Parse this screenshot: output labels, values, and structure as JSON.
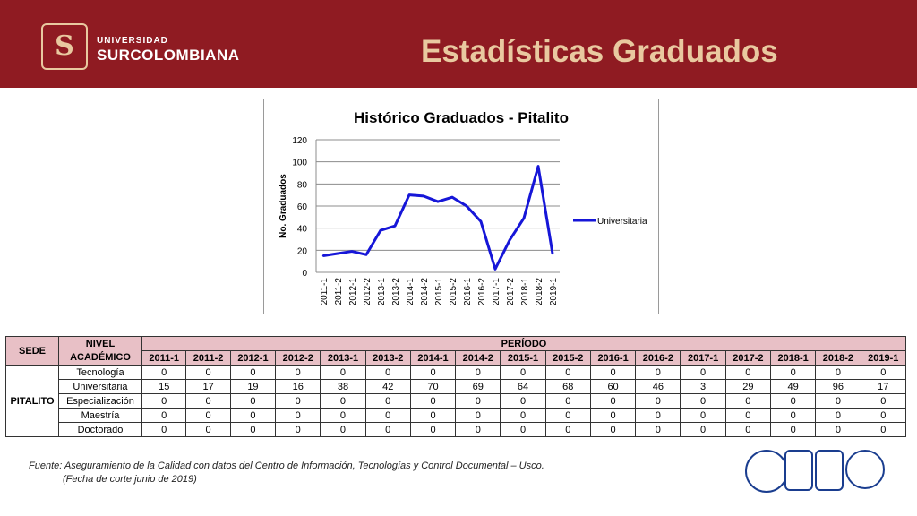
{
  "header": {
    "brand_small": "UNIVERSIDAD",
    "brand_big": "SURCOLOMBIANA",
    "title": "Estadísticas Graduados"
  },
  "chart_data": {
    "type": "line",
    "title": "Histórico Graduados - Pitalito",
    "xlabel": "",
    "ylabel": "No. Graduados",
    "categories": [
      "2011-1",
      "2011-2",
      "2012-1",
      "2012-2",
      "2013-1",
      "2013-2",
      "2014-1",
      "2014-2",
      "2015-1",
      "2015-2",
      "2016-1",
      "2016-2",
      "2017-1",
      "2017-2",
      "2018-1",
      "2018-2",
      "2019-1"
    ],
    "series": [
      {
        "name": "Universitaria",
        "values": [
          15,
          17,
          19,
          16,
          38,
          42,
          70,
          69,
          64,
          68,
          60,
          46,
          3,
          29,
          49,
          96,
          17
        ]
      }
    ],
    "ylim": [
      0,
      120
    ],
    "yticks": [
      0,
      20,
      40,
      60,
      80,
      100,
      120
    ],
    "grid": true,
    "legend": "right",
    "colors": {
      "line": "#1616d8"
    }
  },
  "table": {
    "header_sede": "SEDE",
    "header_nivel_1": "NIVEL",
    "header_nivel_2": "ACADÉMICO",
    "header_periodo": "PERÍODO",
    "periods": [
      "2011-1",
      "2011-2",
      "2012-1",
      "2012-2",
      "2013-1",
      "2013-2",
      "2014-1",
      "2014-2",
      "2015-1",
      "2015-2",
      "2016-1",
      "2016-2",
      "2017-1",
      "2017-2",
      "2018-1",
      "2018-2",
      "2019-1"
    ],
    "sede": "PITALITO",
    "rows": [
      {
        "nivel": "Tecnología",
        "values": [
          0,
          0,
          0,
          0,
          0,
          0,
          0,
          0,
          0,
          0,
          0,
          0,
          0,
          0,
          0,
          0,
          0
        ]
      },
      {
        "nivel": "Universitaria",
        "values": [
          15,
          17,
          19,
          16,
          38,
          42,
          70,
          69,
          64,
          68,
          60,
          46,
          3,
          29,
          49,
          96,
          17
        ]
      },
      {
        "nivel": "Especialización",
        "values": [
          0,
          0,
          0,
          0,
          0,
          0,
          0,
          0,
          0,
          0,
          0,
          0,
          0,
          0,
          0,
          0,
          0
        ]
      },
      {
        "nivel": "Maestría",
        "values": [
          0,
          0,
          0,
          0,
          0,
          0,
          0,
          0,
          0,
          0,
          0,
          0,
          0,
          0,
          0,
          0,
          0
        ]
      },
      {
        "nivel": "Doctorado",
        "values": [
          0,
          0,
          0,
          0,
          0,
          0,
          0,
          0,
          0,
          0,
          0,
          0,
          0,
          0,
          0,
          0,
          0
        ]
      }
    ]
  },
  "footer": {
    "source_line1": "Fuente: Aseguramiento de la Calidad con datos del Centro de Información, Tecnologías y Control Documental – Usco.",
    "source_line2": "(Fecha de corte junio de 2019)"
  }
}
